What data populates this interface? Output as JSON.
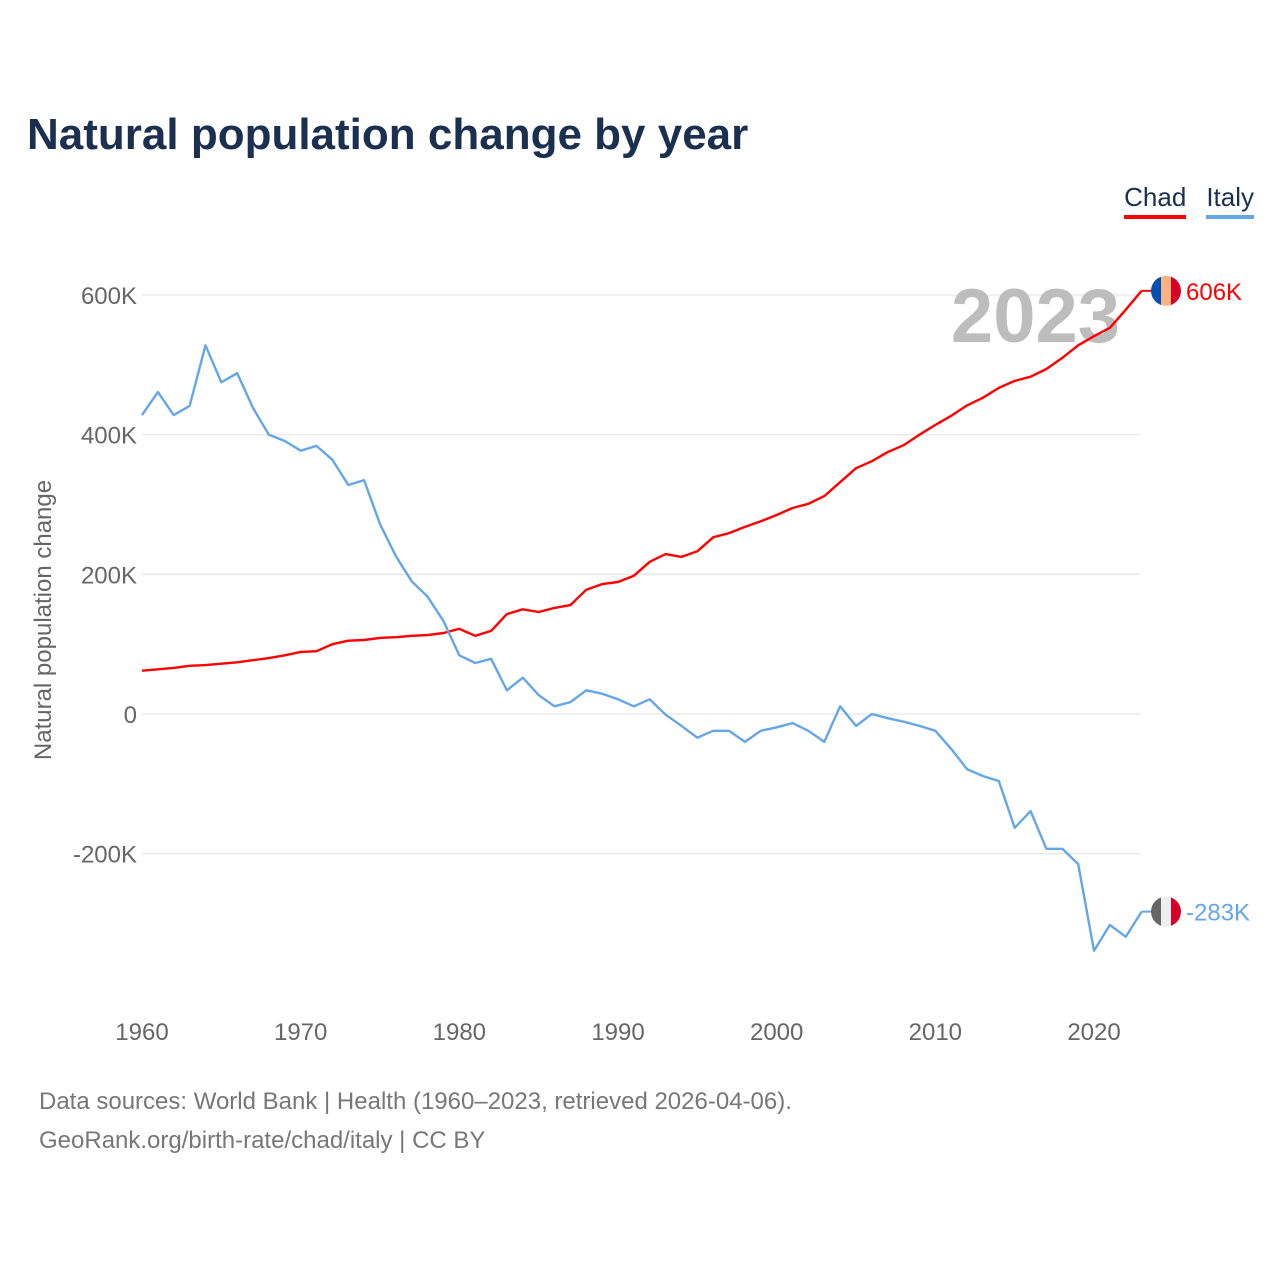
{
  "title": "Natural population change by year",
  "year_watermark": "2023",
  "footer": {
    "line1": "Data sources: World Bank | Health (1960–2023, retrieved 2026-04-06).",
    "line2": "GeoRank.org/birth-rate/chad/italy | CC BY"
  },
  "chart_data": {
    "type": "line",
    "title": "Natural population change by year",
    "xlabel": "",
    "ylabel": "Natural population change",
    "xlim": [
      1960,
      2023
    ],
    "ylim": [
      -380,
      700
    ],
    "yticks": [
      {
        "v": -200,
        "label": "-200K"
      },
      {
        "v": 0,
        "label": "0"
      },
      {
        "v": 200,
        "label": "200K"
      },
      {
        "v": 400,
        "label": "400K"
      },
      {
        "v": 600,
        "label": "600K"
      }
    ],
    "xticks": [
      {
        "v": 1960,
        "label": "1960"
      },
      {
        "v": 1970,
        "label": "1970"
      },
      {
        "v": 1980,
        "label": "1980"
      },
      {
        "v": 1990,
        "label": "1990"
      },
      {
        "v": 2000,
        "label": "2000"
      },
      {
        "v": 2010,
        "label": "2010"
      },
      {
        "v": 2020,
        "label": "2020"
      }
    ],
    "grid": true,
    "legend_position": "top-right",
    "x_start": 1960,
    "series": [
      {
        "name": "Chad",
        "color": "#ff0000",
        "end_label": "606K",
        "flag": [
          "#0050b5",
          "#ffb380",
          "#d80027"
        ],
        "values": [
          62,
          64,
          66,
          69,
          70,
          72,
          74,
          77,
          80,
          84,
          89,
          90,
          100,
          105,
          106,
          109,
          110,
          112,
          113,
          116,
          122,
          112,
          119,
          143,
          150,
          146,
          152,
          156,
          178,
          186,
          189,
          198,
          218,
          229,
          225,
          233,
          253,
          259,
          268,
          276,
          285,
          295,
          301,
          312,
          332,
          352,
          362,
          375,
          385,
          400,
          414,
          427,
          442,
          453,
          467,
          477,
          483,
          494,
          510,
          528,
          541,
          553,
          579,
          606
        ]
      },
      {
        "name": "Italy",
        "color": "#64a6e8",
        "end_label": "-283K",
        "flag": [
          "#666666",
          "#eeeeee",
          "#d80027"
        ],
        "values": [
          428,
          461,
          428,
          441,
          528,
          475,
          488,
          438,
          400,
          391,
          377,
          384,
          364,
          328,
          335,
          272,
          226,
          190,
          168,
          133,
          84,
          73,
          79,
          34,
          52,
          27,
          11,
          17,
          34,
          29,
          21,
          11,
          21,
          -1,
          -17,
          -34,
          -24,
          -24,
          -40,
          -24,
          -19,
          -13,
          -24,
          -40,
          11,
          -17,
          0,
          -6,
          -11,
          -17,
          -24,
          -50,
          -79,
          -89,
          -96,
          -163,
          -139,
          -193,
          -193,
          -215,
          -339,
          -302,
          -319,
          -283
        ]
      }
    ]
  }
}
